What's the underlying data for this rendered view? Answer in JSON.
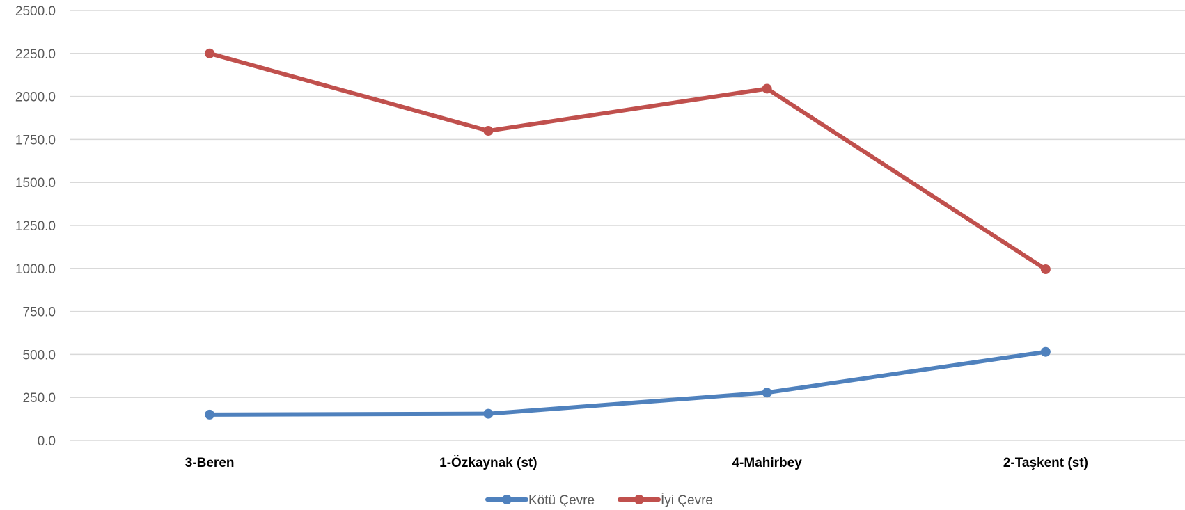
{
  "chart_data": {
    "type": "line",
    "categories": [
      "3-Beren",
      "1-Özkaynak (st)",
      "4-Mahirbey",
      "2-Taşkent (st)"
    ],
    "series": [
      {
        "name": "Kötü Çevre",
        "color": "#4F81BD",
        "values": [
          150,
          155,
          278,
          515
        ]
      },
      {
        "name": "İyi Çevre",
        "color": "#C0504D",
        "values": [
          2250,
          1800,
          2045,
          995
        ]
      }
    ],
    "ylim": [
      0,
      2500
    ],
    "yticks": [
      "0.0",
      "250.0",
      "500.0",
      "750.0",
      "1000.0",
      "1250.0",
      "1500.0",
      "1750.0",
      "2000.0",
      "2250.0",
      "2500.0"
    ],
    "grid": true,
    "legend_position": "bottom",
    "title": "",
    "xlabel": "",
    "ylabel": ""
  }
}
